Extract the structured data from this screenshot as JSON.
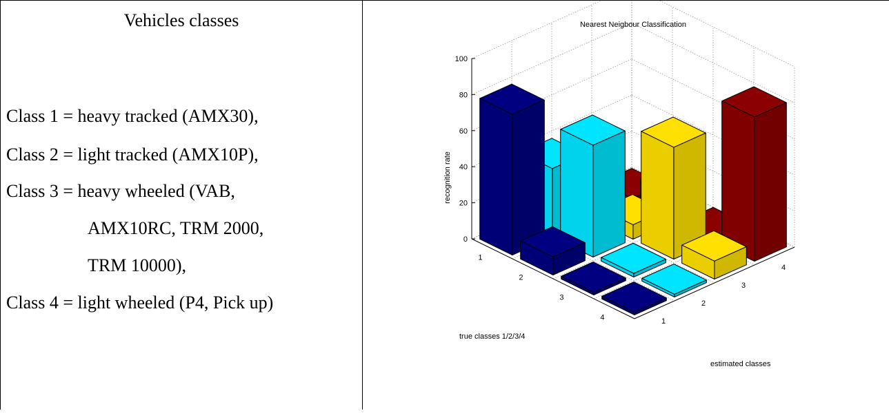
{
  "left_panel": {
    "heading": "Vehicles classes",
    "classes": [
      "Class 1 = heavy tracked (AMX30),",
      "Class 2 = light tracked (AMX10P),",
      "Class 3 = heavy wheeled (VAB,",
      "AMX10RC, TRM 2000,",
      "TRM 10000),",
      "Class 4 = light wheeled (P4, Pick up)"
    ]
  },
  "chart_data": {
    "type": "bar",
    "subtype": "bar3d",
    "title": "Nearest Neigbour Classification",
    "xlabel": "true classes 1/2/3/4",
    "ylabel": "estimated classes",
    "zlabel": "recognition rate",
    "zticks": [
      "0",
      "20",
      "40",
      "60",
      "80",
      "100"
    ],
    "zlim": [
      0,
      100
    ],
    "true_class_ticks": [
      "1",
      "2",
      "3",
      "4"
    ],
    "estimated_class_ticks": [
      "1",
      "2",
      "3",
      "4"
    ],
    "grid": true,
    "series": [
      {
        "color": "#000080",
        "values": [
          78,
          10,
          0,
          0
        ]
      },
      {
        "color": "#00E5FF",
        "values": [
          38,
          62,
          2,
          0
        ]
      },
      {
        "color": "#FFE000",
        "values": [
          30,
          8,
          62,
          10
        ]
      },
      {
        "color": "#8B0000",
        "values": [
          0,
          15,
          2,
          80
        ]
      }
    ]
  }
}
